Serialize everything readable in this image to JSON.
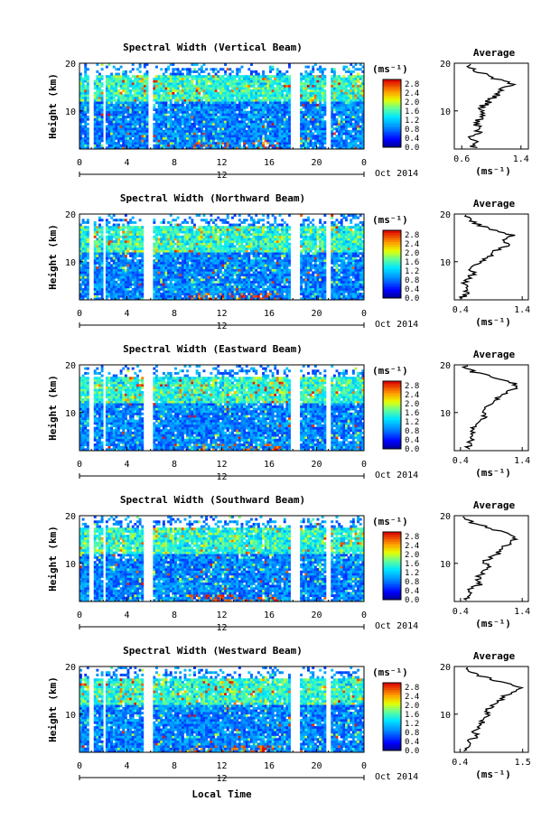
{
  "chart_data": [
    {
      "type": "heatmap",
      "title": "Spectral Width (Vertical Beam)",
      "ylabel": "Height (km)",
      "x_ticks": [
        "0",
        "4",
        "8",
        "12",
        "16",
        "20",
        "0"
      ],
      "y_ticks": [
        "10",
        "20"
      ],
      "xlim": [
        0,
        24
      ],
      "ylim": [
        2,
        20
      ],
      "date_label": "12",
      "month_label": "Oct 2014",
      "colorbar": {
        "unit": "(ms⁻¹)",
        "ticks": [
          "0.0",
          "0.4",
          "0.8",
          "1.2",
          "1.6",
          "2.0",
          "2.4",
          "2.8"
        ],
        "range": [
          0,
          3.0
        ]
      },
      "data_gaps_hours": [
        [
          0.7,
          1.0
        ],
        [
          1.8,
          2.1
        ],
        [
          5.7,
          6.0
        ],
        [
          17.8,
          18.5
        ],
        [
          20.8,
          21.1
        ]
      ],
      "average_profile": {
        "title": "Average",
        "ylabel": "",
        "xlabel": "(ms⁻¹)",
        "x_ticks": [
          "0.6",
          "1.4"
        ],
        "xlim": [
          0.5,
          1.5
        ],
        "y_ticks": [
          "10",
          "20"
        ],
        "ylim": [
          2,
          20
        ],
        "height_km": [
          2.5,
          3.5,
          4.5,
          5.5,
          6.5,
          7.5,
          8.5,
          9.5,
          10.5,
          11.5,
          12.5,
          13.5,
          14.5,
          15.5,
          16.5,
          17.5,
          18.5,
          19.5
        ],
        "width_ms": [
          0.75,
          0.8,
          0.72,
          0.85,
          0.8,
          0.82,
          0.85,
          0.9,
          0.86,
          0.92,
          1.0,
          1.08,
          1.15,
          1.3,
          1.1,
          0.95,
          0.75,
          0.7
        ]
      }
    },
    {
      "type": "heatmap",
      "title": "Spectral Width (Northward Beam)",
      "ylabel": "Height (km)",
      "x_ticks": [
        "0",
        "4",
        "8",
        "12",
        "16",
        "20",
        "0"
      ],
      "y_ticks": [
        "10",
        "20"
      ],
      "xlim": [
        0,
        24
      ],
      "ylim": [
        2,
        20
      ],
      "date_label": "12",
      "month_label": "Oct 2014",
      "colorbar": {
        "unit": "(ms⁻¹)",
        "ticks": [
          "0.0",
          "0.4",
          "0.8",
          "1.2",
          "1.6",
          "2.0",
          "2.4",
          "2.8"
        ],
        "range": [
          0,
          3.0
        ]
      },
      "data_gaps_hours": [
        [
          0.7,
          1.0
        ],
        [
          1.8,
          2.1
        ],
        [
          5.3,
          6.0
        ],
        [
          17.8,
          18.5
        ],
        [
          20.8,
          21.1
        ]
      ],
      "average_profile": {
        "title": "Average",
        "ylabel": "",
        "xlabel": "(ms⁻¹)",
        "x_ticks": [
          "0.4",
          "1.4"
        ],
        "xlim": [
          0.3,
          1.5
        ],
        "y_ticks": [
          "10",
          "20"
        ],
        "ylim": [
          2,
          20
        ],
        "height_km": [
          2.5,
          3.5,
          4.5,
          5.5,
          6.5,
          7.5,
          8.5,
          9.5,
          10.5,
          11.5,
          12.5,
          13.5,
          14.5,
          15.5,
          16.5,
          17.5,
          18.5,
          19.5
        ],
        "width_ms": [
          0.45,
          0.5,
          0.55,
          0.48,
          0.52,
          0.6,
          0.55,
          0.65,
          0.8,
          0.9,
          1.0,
          1.2,
          1.1,
          1.25,
          0.95,
          0.75,
          0.55,
          0.5
        ]
      }
    },
    {
      "type": "heatmap",
      "title": "Spectral Width (Eastward Beam)",
      "ylabel": "Height (km)",
      "x_ticks": [
        "0",
        "4",
        "8",
        "12",
        "16",
        "20",
        "0"
      ],
      "y_ticks": [
        "10",
        "20"
      ],
      "xlim": [
        0,
        24
      ],
      "ylim": [
        2,
        20
      ],
      "date_label": "12",
      "month_label": "Oct 2014",
      "colorbar": {
        "unit": "(ms⁻¹)",
        "ticks": [
          "0.0",
          "0.4",
          "0.8",
          "1.2",
          "1.6",
          "2.0",
          "2.4",
          "2.8"
        ],
        "range": [
          0,
          3.0
        ]
      },
      "data_gaps_hours": [
        [
          0.7,
          1.0
        ],
        [
          1.8,
          2.1
        ],
        [
          5.3,
          6.0
        ],
        [
          17.8,
          18.5
        ],
        [
          20.8,
          21.1
        ]
      ],
      "average_profile": {
        "title": "Average",
        "ylabel": "",
        "xlabel": "(ms⁻¹)",
        "x_ticks": [
          "0.4",
          "1.4"
        ],
        "xlim": [
          0.3,
          1.5
        ],
        "y_ticks": [
          "10",
          "20"
        ],
        "ylim": [
          2,
          20
        ],
        "height_km": [
          2.5,
          3.5,
          4.5,
          5.5,
          6.5,
          7.5,
          8.5,
          9.5,
          10.5,
          11.5,
          12.5,
          13.5,
          14.5,
          15.5,
          16.5,
          17.5,
          18.5,
          19.5
        ],
        "width_ms": [
          0.5,
          0.55,
          0.6,
          0.62,
          0.58,
          0.7,
          0.75,
          0.8,
          0.78,
          0.9,
          0.95,
          1.05,
          1.15,
          1.35,
          1.2,
          0.9,
          0.6,
          0.5
        ]
      }
    },
    {
      "type": "heatmap",
      "title": "Spectral Width (Southward Beam)",
      "ylabel": "Height (km)",
      "x_ticks": [
        "0",
        "4",
        "8",
        "12",
        "16",
        "20",
        "0"
      ],
      "y_ticks": [
        "10",
        "20"
      ],
      "xlim": [
        0,
        24
      ],
      "ylim": [
        2,
        20
      ],
      "date_label": "12",
      "month_label": "Oct 2014",
      "colorbar": {
        "unit": "(ms⁻¹)",
        "ticks": [
          "0.0",
          "0.4",
          "0.8",
          "1.2",
          "1.6",
          "2.0",
          "2.4",
          "2.8"
        ],
        "range": [
          0,
          3.0
        ]
      },
      "data_gaps_hours": [
        [
          0.7,
          1.0
        ],
        [
          1.8,
          2.1
        ],
        [
          5.3,
          6.0
        ],
        [
          17.8,
          18.5
        ],
        [
          20.8,
          21.1
        ]
      ],
      "average_profile": {
        "title": "Average",
        "ylabel": "",
        "xlabel": "(ms⁻¹)",
        "x_ticks": [
          "0.4",
          "1.4"
        ],
        "xlim": [
          0.3,
          1.5
        ],
        "y_ticks": [
          "10",
          "20"
        ],
        "ylim": [
          2,
          20
        ],
        "height_km": [
          2.5,
          3.5,
          4.5,
          5.5,
          6.5,
          7.5,
          8.5,
          9.5,
          10.5,
          11.5,
          12.5,
          13.5,
          14.5,
          15.5,
          16.5,
          17.5,
          18.5,
          19.5
        ],
        "width_ms": [
          0.5,
          0.6,
          0.55,
          0.7,
          0.65,
          0.72,
          0.8,
          0.85,
          0.8,
          0.95,
          1.05,
          1.1,
          1.25,
          1.3,
          1.1,
          0.85,
          0.6,
          0.5
        ]
      }
    },
    {
      "type": "heatmap",
      "title": "Spectral Width (Westward Beam)",
      "ylabel": "Height (km)",
      "x_ticks": [
        "0",
        "4",
        "8",
        "12",
        "16",
        "20",
        "0"
      ],
      "y_ticks": [
        "10",
        "20"
      ],
      "xlim": [
        0,
        24
      ],
      "ylim": [
        2,
        20
      ],
      "date_label": "12",
      "month_label": "Oct 2014",
      "xlabel": "Local Time",
      "colorbar": {
        "unit": "(ms⁻¹)",
        "ticks": [
          "0.0",
          "0.4",
          "0.8",
          "1.2",
          "1.6",
          "2.0",
          "2.4",
          "2.8"
        ],
        "range": [
          0,
          3.0
        ]
      },
      "data_gaps_hours": [
        [
          0.7,
          1.0
        ],
        [
          1.8,
          2.1
        ],
        [
          5.3,
          6.0
        ],
        [
          17.8,
          18.5
        ],
        [
          20.8,
          21.1
        ]
      ],
      "average_profile": {
        "title": "Average",
        "ylabel": "",
        "xlabel": "(ms⁻¹)",
        "x_ticks": [
          "0.4",
          "1.5"
        ],
        "xlim": [
          0.3,
          1.6
        ],
        "y_ticks": [
          "10",
          "20"
        ],
        "ylim": [
          2,
          20
        ],
        "height_km": [
          2.5,
          3.5,
          4.5,
          5.5,
          6.5,
          7.5,
          8.5,
          9.5,
          10.5,
          11.5,
          12.5,
          13.5,
          14.5,
          15.5,
          16.5,
          17.5,
          18.5,
          19.5
        ],
        "width_ms": [
          0.5,
          0.6,
          0.58,
          0.7,
          0.62,
          0.75,
          0.8,
          0.9,
          0.85,
          0.95,
          1.05,
          1.15,
          1.3,
          1.45,
          1.2,
          0.9,
          0.65,
          0.55
        ]
      }
    }
  ]
}
